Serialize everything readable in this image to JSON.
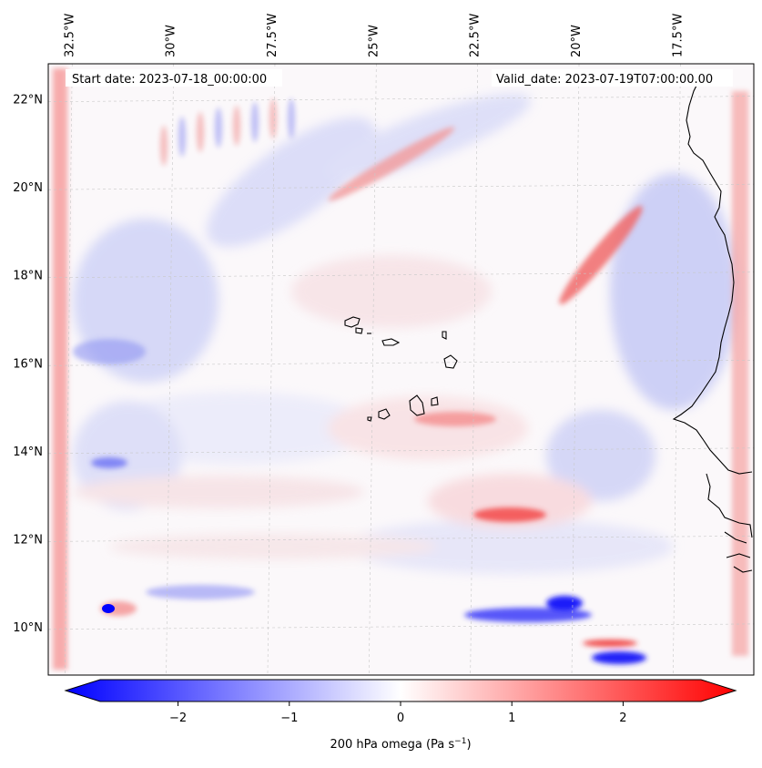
{
  "map": {
    "start_label": "Start date: 2023-07-18_00:00:00",
    "valid_label": "Valid_date: 2023-07-19T07:00:00.00",
    "lon_labels": [
      "32.5°W",
      "30°W",
      "27.5°W",
      "25°W",
      "22.5°W",
      "20°W",
      "17.5°W"
    ],
    "lat_labels": [
      "22°N",
      "20°N",
      "18°N",
      "16°N",
      "14°N",
      "12°N",
      "10°N"
    ],
    "extent": {
      "lon_min": -33.0,
      "lon_max": -15.6,
      "lat_min": 8.9,
      "lat_max": 22.8
    },
    "colors": {
      "negative": "#0000ff",
      "neutral": "#ffffff",
      "positive": "#ff0000",
      "coastline": "#000000",
      "grid": "#c8c8c8"
    }
  },
  "colorbar": {
    "label": "200 hPa omega (Pa s",
    "label_exp": "−1",
    "label_close": ")",
    "ticks": [
      "−2",
      "−1",
      "0",
      "1",
      "2"
    ],
    "tick_values": [
      -2,
      -1,
      0,
      1,
      2
    ],
    "range": [
      -2.7,
      2.7
    ],
    "extend": "both"
  }
}
